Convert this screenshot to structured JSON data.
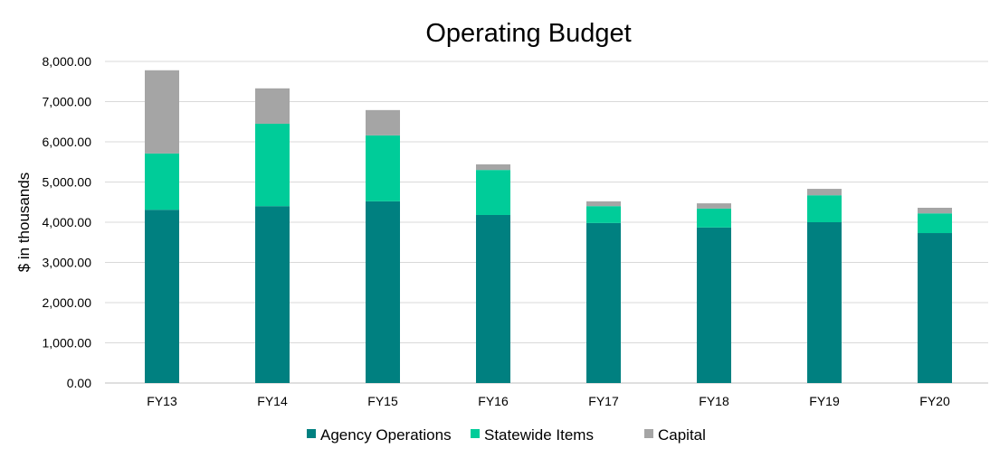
{
  "chart_data": {
    "type": "bar",
    "stacked": true,
    "title": "Operating Budget",
    "xlabel": "",
    "ylabel": "$ in thousands",
    "ylim": [
      0,
      8000
    ],
    "yticks": [
      0,
      1000,
      2000,
      3000,
      4000,
      5000,
      6000,
      7000,
      8000
    ],
    "ytick_labels": [
      "0.00",
      "1,000.00",
      "2,000.00",
      "3,000.00",
      "4,000.00",
      "5,000.00",
      "6,000.00",
      "7,000.00",
      "8,000.00"
    ],
    "grid": true,
    "legend_position": "bottom",
    "categories": [
      "FY13",
      "FY14",
      "FY15",
      "FY16",
      "FY17",
      "FY18",
      "FY19",
      "FY20"
    ],
    "series": [
      {
        "name": "Agency Operations",
        "color": "#008080",
        "values": [
          4310,
          4400,
          4520,
          4180,
          3980,
          3870,
          4000,
          3730
        ]
      },
      {
        "name": "Statewide Items",
        "color": "#00CC99",
        "values": [
          1400,
          2050,
          1640,
          1120,
          420,
          470,
          670,
          490
        ]
      },
      {
        "name": "Capital",
        "color": "#A5A5A5",
        "values": [
          2070,
          880,
          630,
          140,
          120,
          130,
          160,
          140
        ]
      }
    ]
  }
}
